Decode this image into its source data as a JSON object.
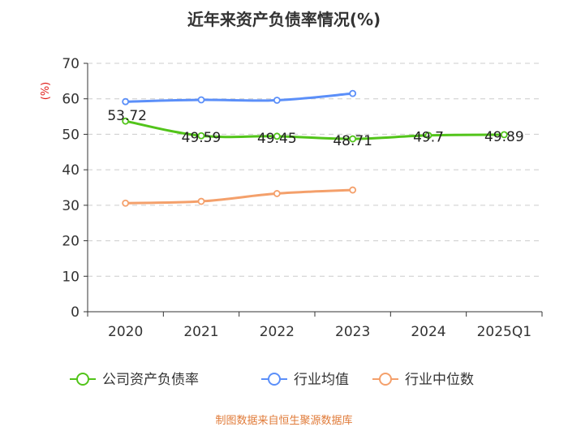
{
  "chart_data": {
    "type": "line",
    "title": "近年来资产负债率情况(%)",
    "ylabel": "(%)",
    "xlabel": "",
    "categories": [
      "2020",
      "2021",
      "2022",
      "2023",
      "2024",
      "2025Q1"
    ],
    "ylim": [
      0,
      70
    ],
    "yticks": [
      0,
      10,
      20,
      30,
      40,
      50,
      60,
      70
    ],
    "grid": true,
    "legend_position": "bottom",
    "series": [
      {
        "name": "公司资产负债率",
        "color": "#52c41a",
        "values": [
          53.72,
          49.59,
          49.45,
          48.71,
          49.7,
          49.89
        ],
        "labels": [
          "53.72",
          "49.59",
          "49.45",
          "48.71",
          "49.7",
          "49.89"
        ]
      },
      {
        "name": "行业均值",
        "color": "#5b8ff9",
        "values": [
          59.2,
          59.7,
          59.6,
          61.5,
          null,
          null
        ]
      },
      {
        "name": "行业中位数",
        "color": "#f4a06b",
        "values": [
          30.6,
          31.1,
          33.3,
          34.3,
          null,
          null
        ]
      }
    ]
  },
  "source_text": "制图数据来自恒生聚源数据库"
}
